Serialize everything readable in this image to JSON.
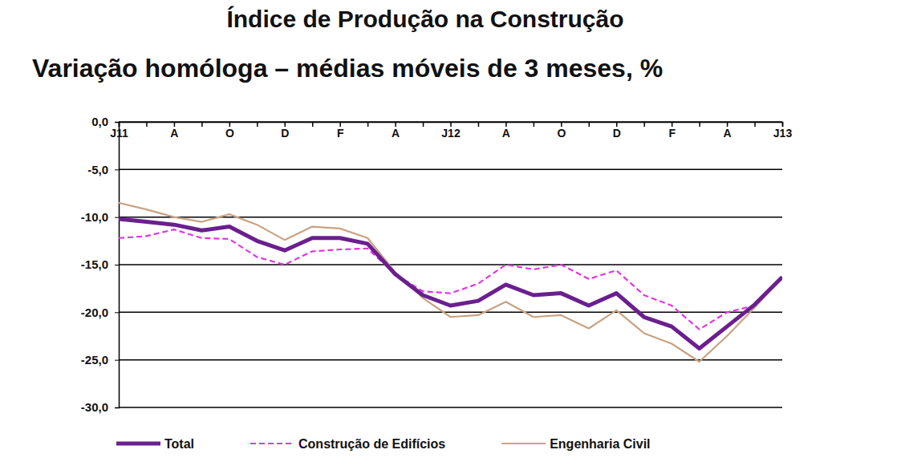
{
  "chart_data": {
    "type": "line",
    "title": "Índice de Produção na Construção",
    "subtitle": "Variação homóloga – médias móveis de 3 meses, %",
    "categories": [
      "J11",
      null,
      "A",
      null,
      "O",
      null,
      "D",
      null,
      "F",
      null,
      "A",
      null,
      "J12",
      null,
      "A",
      null,
      "O",
      null,
      "D",
      null,
      "F",
      null,
      "A",
      null,
      "J13"
    ],
    "series": [
      {
        "name": "Total",
        "color": "#6b1f8f",
        "line_style": "solid",
        "values": [
          -10.2,
          -10.5,
          -10.8,
          -11.4,
          -11.0,
          -12.5,
          -13.5,
          -12.2,
          -12.2,
          -12.8,
          -16.0,
          -18.2,
          -19.3,
          -18.8,
          -17.1,
          -18.2,
          -18.0,
          -19.3,
          -18.0,
          -20.5,
          -21.5,
          -23.8,
          -21.5,
          -19.2,
          -16.3
        ]
      },
      {
        "name": "Construção de Edifícios",
        "color": "#e236e2",
        "line_style": "dashed",
        "values": [
          -12.2,
          -12.0,
          -11.3,
          -12.2,
          -12.3,
          -14.2,
          -15.0,
          -13.6,
          -13.4,
          -13.3,
          -16.0,
          -17.8,
          -18.0,
          -17.0,
          -15.0,
          -15.5,
          -15.0,
          -16.5,
          -15.6,
          -18.2,
          -19.3,
          -21.8,
          -20.0,
          -19.3,
          -16.3
        ]
      },
      {
        "name": "Engenharia Civil",
        "color": "#c9a283",
        "line_style": "solid",
        "values": [
          -8.5,
          -9.2,
          -10.0,
          -10.5,
          -9.7,
          -10.8,
          -12.4,
          -11.0,
          -11.2,
          -12.2,
          -15.8,
          -18.5,
          -20.5,
          -20.3,
          -18.9,
          -20.5,
          -20.3,
          -21.7,
          -19.8,
          -22.2,
          -23.3,
          -25.2,
          -22.5,
          -19.5,
          -16.3
        ]
      }
    ],
    "ylim": [
      -30,
      0
    ],
    "yticks": [
      {
        "value": -30,
        "label": "-30,0"
      },
      {
        "value": -25,
        "label": "-25,0"
      },
      {
        "value": -20,
        "label": "-20,0"
      },
      {
        "value": -15,
        "label": "-15,0"
      },
      {
        "value": -10,
        "label": "-10,0"
      },
      {
        "value": -5,
        "label": "-5,0"
      },
      {
        "value": 0,
        "label": "0,0"
      }
    ],
    "grid": true,
    "legend": "bottom"
  }
}
